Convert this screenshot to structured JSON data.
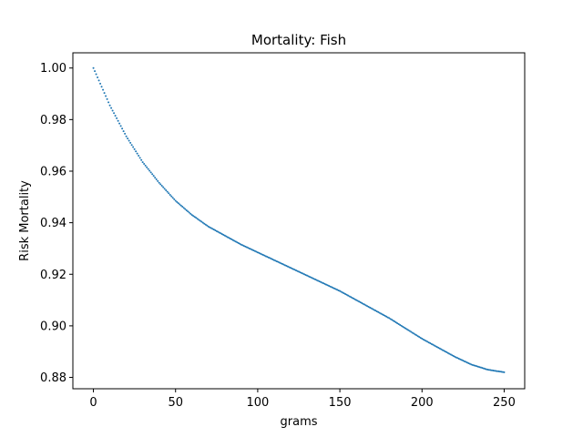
{
  "chart_data": {
    "type": "scatter",
    "title": "Mortality: Fish",
    "xlabel": "grams",
    "ylabel": "Risk Mortality",
    "xlim": [
      -12.5,
      262.5
    ],
    "ylim": [
      0.8756,
      1.0059
    ],
    "xticks": [
      0,
      50,
      100,
      150,
      200,
      250
    ],
    "xtick_labels": [
      "0",
      "50",
      "100",
      "150",
      "200",
      "250"
    ],
    "yticks": [
      0.88,
      0.9,
      0.92,
      0.94,
      0.96,
      0.98,
      1.0
    ],
    "ytick_labels": [
      "0.88",
      "0.90",
      "0.92",
      "0.94",
      "0.96",
      "0.98",
      "1.00"
    ],
    "grid": false,
    "series": [
      {
        "color": "#1f77b4",
        "x": [
          0,
          10,
          20,
          30,
          40,
          50,
          60,
          70,
          80,
          90,
          100,
          110,
          120,
          130,
          140,
          150,
          160,
          170,
          180,
          190,
          200,
          210,
          220,
          230,
          240,
          250
        ],
        "y": [
          1.0,
          0.9855,
          0.9735,
          0.9635,
          0.9555,
          0.9485,
          0.943,
          0.9385,
          0.935,
          0.9315,
          0.9285,
          0.9255,
          0.9225,
          0.9195,
          0.9165,
          0.9135,
          0.91,
          0.9065,
          0.903,
          0.899,
          0.895,
          0.8915,
          0.888,
          0.885,
          0.883,
          0.882
        ]
      }
    ]
  }
}
